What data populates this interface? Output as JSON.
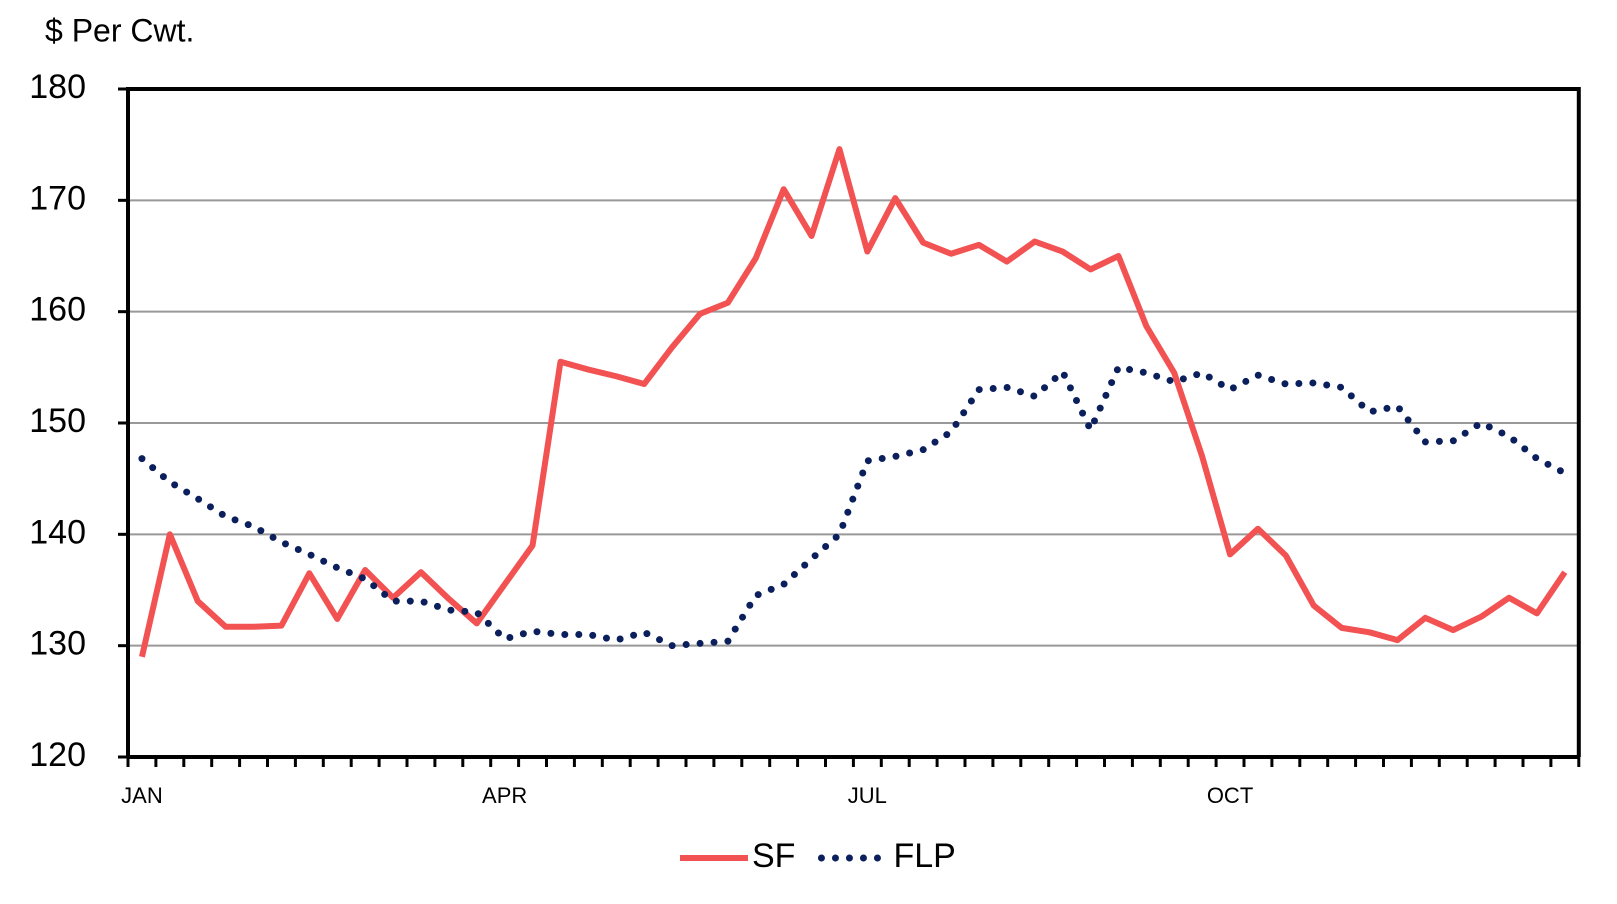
{
  "chart_data": {
    "type": "line",
    "y_label": "$ Per Cwt.",
    "categories": [
      "JAN",
      null,
      null,
      null,
      null,
      null,
      null,
      null,
      null,
      null,
      null,
      null,
      null,
      "APR",
      null,
      null,
      null,
      null,
      null,
      null,
      null,
      null,
      null,
      null,
      null,
      null,
      "JUL",
      null,
      null,
      null,
      null,
      null,
      null,
      null,
      null,
      null,
      null,
      null,
      null,
      "OCT",
      null,
      null,
      null,
      null,
      null,
      null,
      null,
      null,
      null,
      null,
      null,
      null
    ],
    "series": [
      {
        "name": "SF",
        "color": "#f25252",
        "dash": "solid",
        "values": [
          129,
          140,
          134,
          131.7,
          131.7,
          131.8,
          136.5,
          132.4,
          136.8,
          134.3,
          136.6,
          134.2,
          132,
          135.5,
          139,
          155.5,
          154.8,
          154.2,
          153.5,
          156.8,
          159.8,
          160.8,
          164.8,
          171,
          166.8,
          174.6,
          165.4,
          170.2,
          166.2,
          165.2,
          166,
          164.5,
          166.3,
          165.4,
          163.8,
          165,
          158.7,
          154.5,
          147,
          138.2,
          140.5,
          138.1,
          133.6,
          131.6,
          131.2,
          130.5,
          132.5,
          131.4,
          132.6,
          134.3,
          132.9,
          136.6
        ]
      },
      {
        "name": "FLP",
        "color": "#0a1f5c",
        "dash": "dotted",
        "values": [
          146.8,
          144.7,
          143.2,
          141.6,
          140.7,
          139.3,
          138.2,
          137,
          136,
          134,
          134,
          133.2,
          133,
          130.6,
          131.3,
          131,
          131,
          130.5,
          131.2,
          130,
          130.2,
          130.4,
          134.5,
          135.5,
          137.8,
          140,
          146.6,
          147,
          147.6,
          149.2,
          153,
          153.2,
          152.4,
          154.6,
          149.4,
          155,
          154.5,
          153.7,
          154.5,
          153,
          154.3,
          153.5,
          153.6,
          153.2,
          151,
          151.5,
          148.3,
          148.4,
          150,
          148.8,
          146.8,
          145.5
        ]
      }
    ],
    "ylim": [
      120,
      180
    ],
    "yticks": [
      120,
      130,
      140,
      150,
      160,
      170,
      180
    ],
    "grid": true,
    "legend": "bottom"
  }
}
